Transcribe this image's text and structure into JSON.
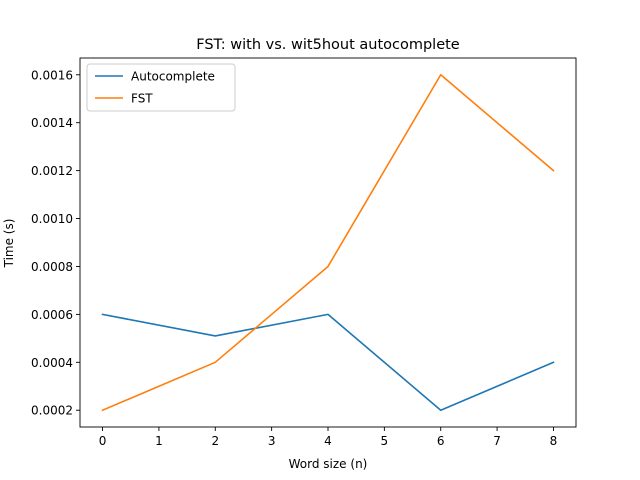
{
  "chart_data": {
    "type": "line",
    "title": "FST: with vs. wit5hout autocomplete",
    "xlabel": "Word size (n)",
    "ylabel": "Time (s)",
    "x": [
      0,
      2,
      4,
      6,
      8
    ],
    "series": [
      {
        "name": "Autocomplete",
        "color": "#1f77b4",
        "values": [
          0.0006,
          0.00051,
          0.0006,
          0.0002,
          0.0004
        ]
      },
      {
        "name": "FST",
        "color": "#ff7f0e",
        "values": [
          0.0002,
          0.0004,
          0.0008,
          0.0016,
          0.0012
        ]
      }
    ],
    "xlim": [
      -0.4,
      8.4
    ],
    "ylim": [
      0.00013,
      0.00167
    ],
    "xticks": [
      0,
      1,
      2,
      3,
      4,
      5,
      6,
      7,
      8
    ],
    "xtick_labels": [
      "0",
      "1",
      "2",
      "3",
      "4",
      "5",
      "6",
      "7",
      "8"
    ],
    "yticks": [
      0.0002,
      0.0004,
      0.0006,
      0.0008,
      0.001,
      0.0012,
      0.0014,
      0.0016
    ],
    "ytick_labels": [
      "0.0002",
      "0.0004",
      "0.0006",
      "0.0008",
      "0.0010",
      "0.0012",
      "0.0014",
      "0.0016"
    ],
    "legend_position": "upper-left",
    "grid": false
  }
}
